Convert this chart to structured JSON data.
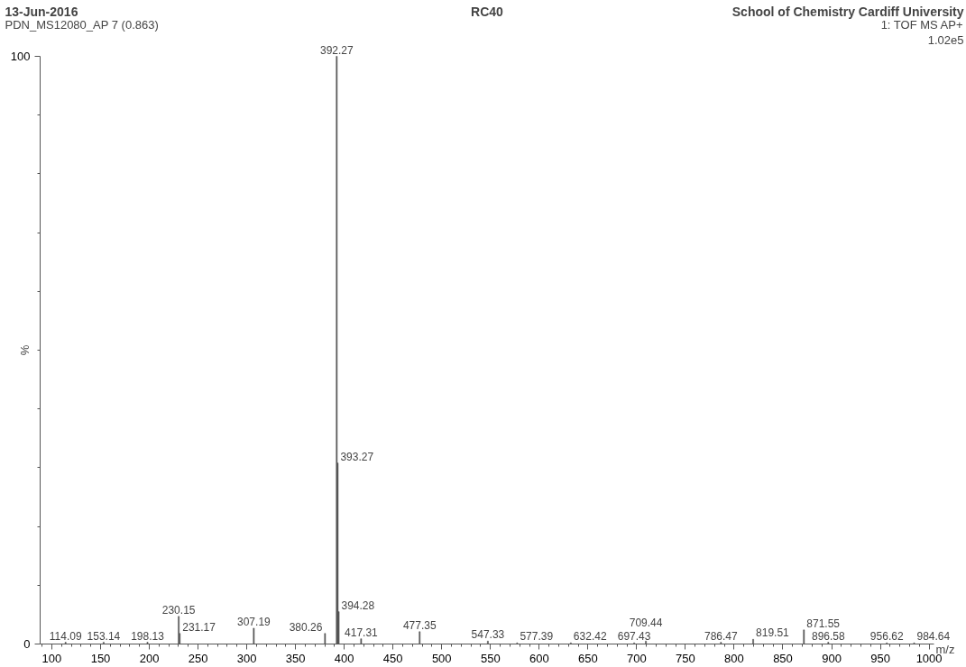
{
  "chart_data": {
    "type": "bar",
    "title": "RC40",
    "xlabel": "m/z",
    "ylabel": "%",
    "x": [
      114.09,
      153.14,
      198.13,
      230.15,
      231.17,
      307.19,
      380.26,
      392.27,
      393.27,
      394.28,
      417.31,
      477.35,
      547.33,
      577.39,
      632.42,
      697.43,
      709.44,
      786.47,
      819.51,
      871.55,
      896.58,
      956.62,
      984.64
    ],
    "series": [
      {
        "color": "#555555",
        "values": [
          0.3,
          0.3,
          0.3,
          4.7,
          1.8,
          2.7,
          1.8,
          100,
          30.8,
          5.5,
          0.9,
          2.1,
          0.5,
          0.2,
          0.2,
          0.2,
          0.5,
          0.3,
          0.8,
          2.4,
          0.3,
          0.2,
          0.2
        ]
      }
    ],
    "annotations": [
      "13-Jun-2016",
      "PDN_MS12080_AP 7 (0.863)",
      "School of Chemistry Cardiff University",
      "1: TOF MS AP+",
      "1.02e5",
      {
        "text": "114.09",
        "x": 114.09,
        "y": 0.3
      },
      {
        "text": "153.14",
        "x": 153.14,
        "y": 0.3
      },
      {
        "text": "198.13",
        "x": 198.13,
        "y": 0.3
      },
      {
        "text": "230.15",
        "x": 230.15,
        "y": 4.7
      },
      {
        "text": "231.17",
        "x": 231.17,
        "y": 1.8
      },
      {
        "text": "307.19",
        "x": 307.19,
        "y": 2.7
      },
      {
        "text": "380.26",
        "x": 380.26,
        "y": 1.8
      },
      {
        "text": "392.27",
        "x": 392.27,
        "y": 100
      },
      {
        "text": "393.27",
        "x": 393.27,
        "y": 30.8
      },
      {
        "text": "394.28",
        "x": 394.28,
        "y": 5.5
      },
      {
        "text": "417.31",
        "x": 417.31,
        "y": 0.9
      },
      {
        "text": "477.35",
        "x": 477.35,
        "y": 2.1
      },
      {
        "text": "547.33",
        "x": 547.33,
        "y": 0.5
      },
      {
        "text": "577.39",
        "x": 577.39,
        "y": 0.2
      },
      {
        "text": "632.42",
        "x": 632.42,
        "y": 0.2
      },
      {
        "text": "697.43",
        "x": 697.43,
        "y": 0.2
      },
      {
        "text": "709.44",
        "x": 709.44,
        "y": 0.5
      },
      {
        "text": "786.47",
        "x": 786.47,
        "y": 0.3
      },
      {
        "text": "819.51",
        "x": 819.51,
        "y": 0.8
      },
      {
        "text": "871.55",
        "x": 871.55,
        "y": 2.4
      },
      {
        "text": "896.58",
        "x": 896.58,
        "y": 0.3
      },
      {
        "text": "956.62",
        "x": 956.62,
        "y": 0.2
      },
      {
        "text": "984.64",
        "x": 984.64,
        "y": 0.2
      }
    ],
    "xlim": [
      88,
      1005
    ],
    "ylim": [
      0,
      100
    ],
    "xticks": [
      {
        "value": 90,
        "label": null
      },
      100,
      {
        "value": 110,
        "label": null
      },
      {
        "value": 120,
        "label": null
      },
      {
        "value": 130,
        "label": null
      },
      {
        "value": 140,
        "label": null
      },
      150,
      {
        "value": 160,
        "label": null
      },
      {
        "value": 170,
        "label": null
      },
      {
        "value": 180,
        "label": null
      },
      {
        "value": 190,
        "label": null
      },
      200,
      {
        "value": 210,
        "label": null
      },
      {
        "value": 220,
        "label": null
      },
      {
        "value": 230,
        "label": null
      },
      {
        "value": 240,
        "label": null
      },
      250,
      {
        "value": 260,
        "label": null
      },
      {
        "value": 270,
        "label": null
      },
      {
        "value": 280,
        "label": null
      },
      {
        "value": 290,
        "label": null
      },
      300,
      {
        "value": 310,
        "label": null
      },
      {
        "value": 320,
        "label": null
      },
      {
        "value": 330,
        "label": null
      },
      {
        "value": 340,
        "label": null
      },
      350,
      {
        "value": 360,
        "label": null
      },
      {
        "value": 370,
        "label": null
      },
      {
        "value": 380,
        "label": null
      },
      {
        "value": 390,
        "label": null
      },
      400,
      {
        "value": 410,
        "label": null
      },
      {
        "value": 420,
        "label": null
      },
      {
        "value": 430,
        "label": null
      },
      {
        "value": 440,
        "label": null
      },
      450,
      {
        "value": 460,
        "label": null
      },
      {
        "value": 470,
        "label": null
      },
      {
        "value": 480,
        "label": null
      },
      {
        "value": 490,
        "label": null
      },
      500,
      {
        "value": 510,
        "label": null
      },
      {
        "value": 520,
        "label": null
      },
      {
        "value": 530,
        "label": null
      },
      {
        "value": 540,
        "label": null
      },
      550,
      {
        "value": 560,
        "label": null
      },
      {
        "value": 570,
        "label": null
      },
      {
        "value": 580,
        "label": null
      },
      {
        "value": 590,
        "label": null
      },
      600,
      {
        "value": 610,
        "label": null
      },
      {
        "value": 620,
        "label": null
      },
      {
        "value": 630,
        "label": null
      },
      {
        "value": 640,
        "label": null
      },
      650,
      {
        "value": 660,
        "label": null
      },
      {
        "value": 670,
        "label": null
      },
      {
        "value": 680,
        "label": null
      },
      {
        "value": 690,
        "label": null
      },
      700,
      {
        "value": 710,
        "label": null
      },
      {
        "value": 720,
        "label": null
      },
      {
        "value": 730,
        "label": null
      },
      {
        "value": 740,
        "label": null
      },
      750,
      {
        "value": 760,
        "label": null
      },
      {
        "value": 770,
        "label": null
      },
      {
        "value": 780,
        "label": null
      },
      {
        "value": 790,
        "label": null
      },
      800,
      {
        "value": 810,
        "label": null
      },
      {
        "value": 820,
        "label": null
      },
      {
        "value": 830,
        "label": null
      },
      {
        "value": 840,
        "label": null
      },
      850,
      {
        "value": 860,
        "label": null
      },
      {
        "value": 870,
        "label": null
      },
      {
        "value": 880,
        "label": null
      },
      {
        "value": 890,
        "label": null
      },
      900,
      {
        "value": 910,
        "label": null
      },
      {
        "value": 920,
        "label": null
      },
      {
        "value": 930,
        "label": null
      },
      {
        "value": 940,
        "label": null
      },
      950,
      {
        "value": 960,
        "label": null
      },
      {
        "value": 970,
        "label": null
      },
      {
        "value": 980,
        "label": null
      },
      {
        "value": 990,
        "label": null
      },
      1000
    ],
    "yticks": [
      0,
      {
        "value": 10,
        "label": null
      },
      {
        "value": 20,
        "label": null
      },
      {
        "value": 30,
        "label": null
      },
      {
        "value": 40,
        "label": null
      },
      {
        "value": 50,
        "label": null
      },
      {
        "value": 60,
        "label": null
      },
      {
        "value": 70,
        "label": null
      },
      {
        "value": 80,
        "label": null
      },
      {
        "value": 90,
        "label": null
      },
      100
    ],
    "grid": false
  }
}
